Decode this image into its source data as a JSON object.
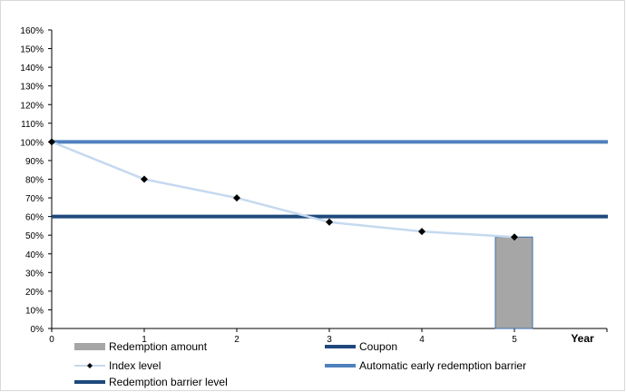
{
  "chart_data": {
    "type": "line",
    "title": "",
    "xlabel": "Year",
    "ylabel": "",
    "ylim": [
      0,
      160
    ],
    "y_ticks": [
      "0%",
      "10%",
      "20%",
      "30%",
      "40%",
      "50%",
      "60%",
      "70%",
      "80%",
      "90%",
      "100%",
      "110%",
      "120%",
      "130%",
      "140%",
      "150%",
      "160%"
    ],
    "x_ticks": [
      "0",
      "1",
      "2",
      "3",
      "4",
      "5"
    ],
    "grid": false,
    "legend_position": "bottom",
    "series": [
      {
        "name": "Index level",
        "type": "line",
        "color": "#c5d9ef",
        "marker": "diamond",
        "x": [
          0,
          1,
          2,
          3,
          4,
          5
        ],
        "values": [
          100,
          80,
          70,
          57,
          52,
          49
        ]
      },
      {
        "name": "Redemption amount",
        "type": "bar",
        "color": "#a6a6a6",
        "x": [
          5
        ],
        "values": [
          49
        ]
      },
      {
        "name": "Automatic early redemption barrier",
        "type": "hline",
        "color": "#4f81bd",
        "value": 100
      },
      {
        "name": "Redemption barrier level",
        "type": "hline",
        "color": "#1f497d",
        "value": 60
      },
      {
        "name": "Coupon",
        "type": "legend-only",
        "color": "#1f497d"
      }
    ]
  }
}
